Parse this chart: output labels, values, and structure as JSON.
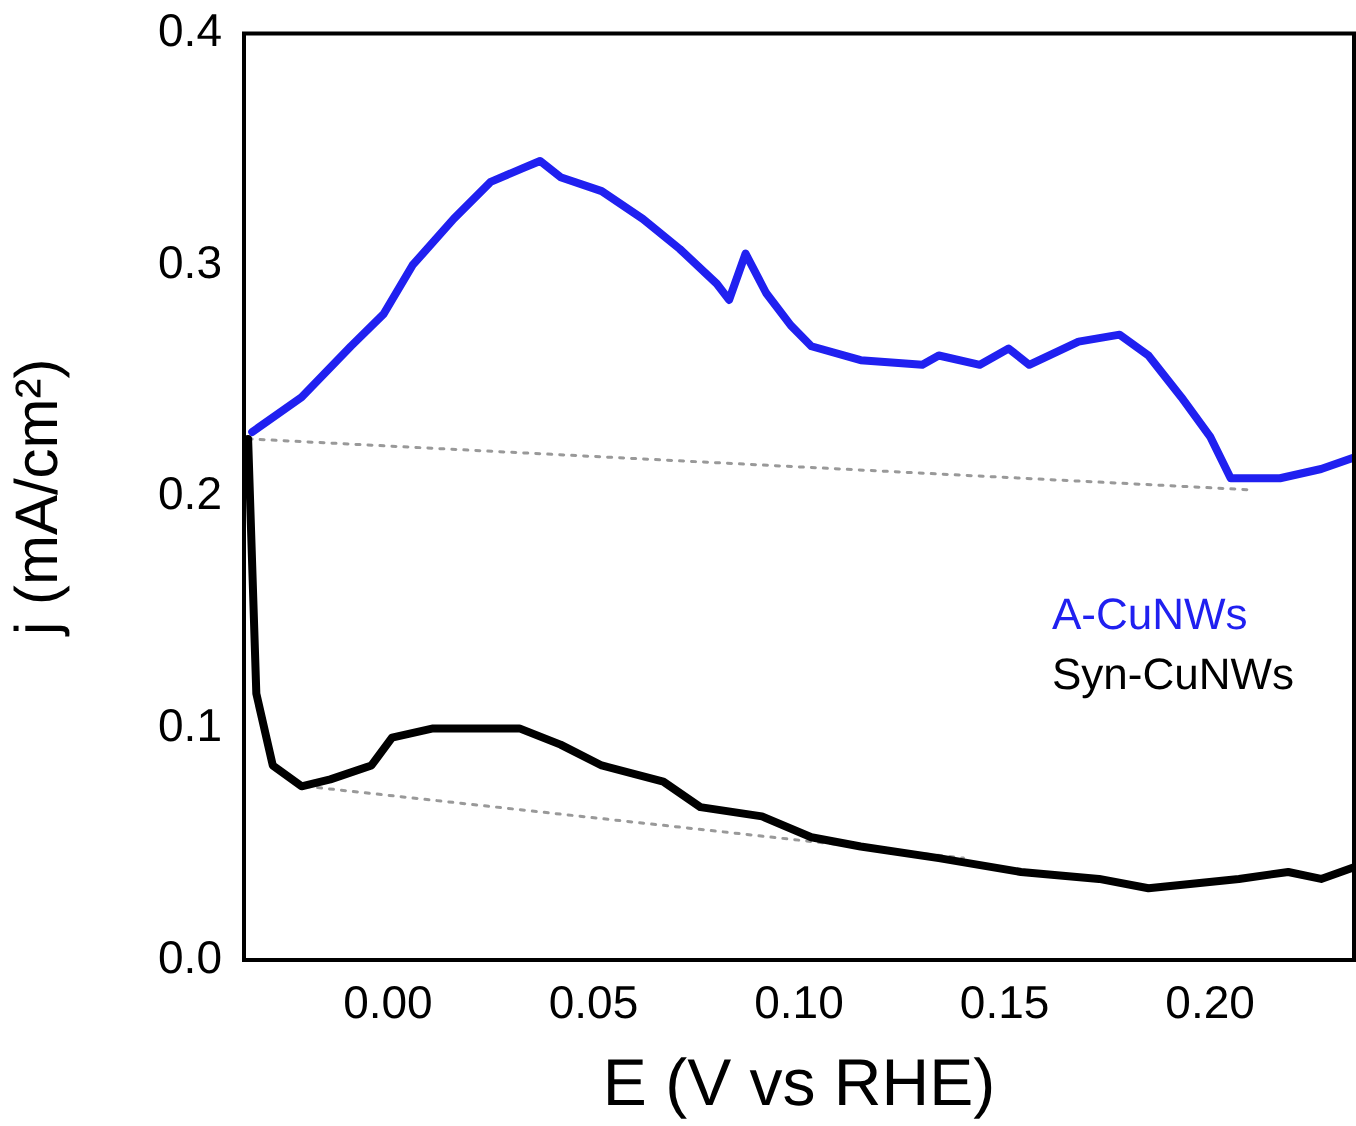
{
  "chart_data": {
    "type": "line",
    "xlabel": "E (V vs RHE)",
    "ylabel": "j (mA/cm²)",
    "xlim": [
      -0.035,
      0.235
    ],
    "xticks": [
      {
        "value": 0,
        "label": "0.00"
      },
      {
        "value": 0.05,
        "label": "0.05"
      },
      {
        "value": 0.1,
        "label": "0.10"
      },
      {
        "value": 0.15,
        "label": "0.15"
      },
      {
        "value": 0.2,
        "label": "0.20"
      }
    ],
    "ylim": [
      0,
      0.4
    ],
    "yticks": [
      {
        "value": 0,
        "label": "0.0"
      },
      {
        "value": 0.1,
        "label": "0.1"
      },
      {
        "value": 0.2,
        "label": "0.2"
      },
      {
        "value": 0.3,
        "label": "0.3"
      },
      {
        "value": 0.4,
        "label": "0.4"
      }
    ],
    "grid": false,
    "legend": "right",
    "marker": "none",
    "series": [
      {
        "name": "A-CuNWs",
        "color": "#2020f0",
        "x": [
          -0.033,
          -0.021,
          -0.009,
          -0.001,
          0.006,
          0.016,
          0.025,
          0.033,
          0.037,
          0.042,
          0.052,
          0.062,
          0.071,
          0.08,
          0.083,
          0.087,
          0.092,
          0.098,
          0.103,
          0.115,
          0.13,
          0.134,
          0.144,
          0.151,
          0.156,
          0.168,
          0.178,
          0.185,
          0.193,
          0.2,
          0.205,
          0.217,
          0.227,
          0.235
        ],
        "values": [
          0.228,
          0.243,
          0.265,
          0.279,
          0.3,
          0.32,
          0.336,
          0.342,
          0.345,
          0.338,
          0.332,
          0.32,
          0.307,
          0.292,
          0.285,
          0.305,
          0.288,
          0.274,
          0.265,
          0.259,
          0.257,
          0.261,
          0.257,
          0.264,
          0.257,
          0.267,
          0.27,
          0.261,
          0.243,
          0.226,
          0.208,
          0.208,
          0.212,
          0.217
        ]
      },
      {
        "name": "Syn-CuNWs",
        "color": "#000000",
        "x": [
          -0.034,
          -0.032,
          -0.028,
          -0.021,
          -0.014,
          -0.004,
          0.001,
          0.011,
          0.032,
          0.042,
          0.052,
          0.067,
          0.076,
          0.091,
          0.103,
          0.115,
          0.134,
          0.154,
          0.173,
          0.185,
          0.207,
          0.219,
          0.227,
          0.235
        ],
        "values": [
          0.225,
          0.115,
          0.084,
          0.075,
          0.078,
          0.084,
          0.096,
          0.1,
          0.1,
          0.093,
          0.084,
          0.077,
          0.066,
          0.062,
          0.053,
          0.049,
          0.044,
          0.038,
          0.035,
          0.031,
          0.035,
          0.038,
          0.035,
          0.04
        ]
      },
      {
        "color": "#999999",
        "line_style": "dotted",
        "x": [
          -0.034,
          0.21
        ],
        "values": [
          0.225,
          0.203
        ]
      },
      {
        "color": "#999999",
        "line_style": "dotted",
        "x": [
          -0.02,
          0.14
        ],
        "values": [
          0.075,
          0.044
        ]
      }
    ]
  }
}
